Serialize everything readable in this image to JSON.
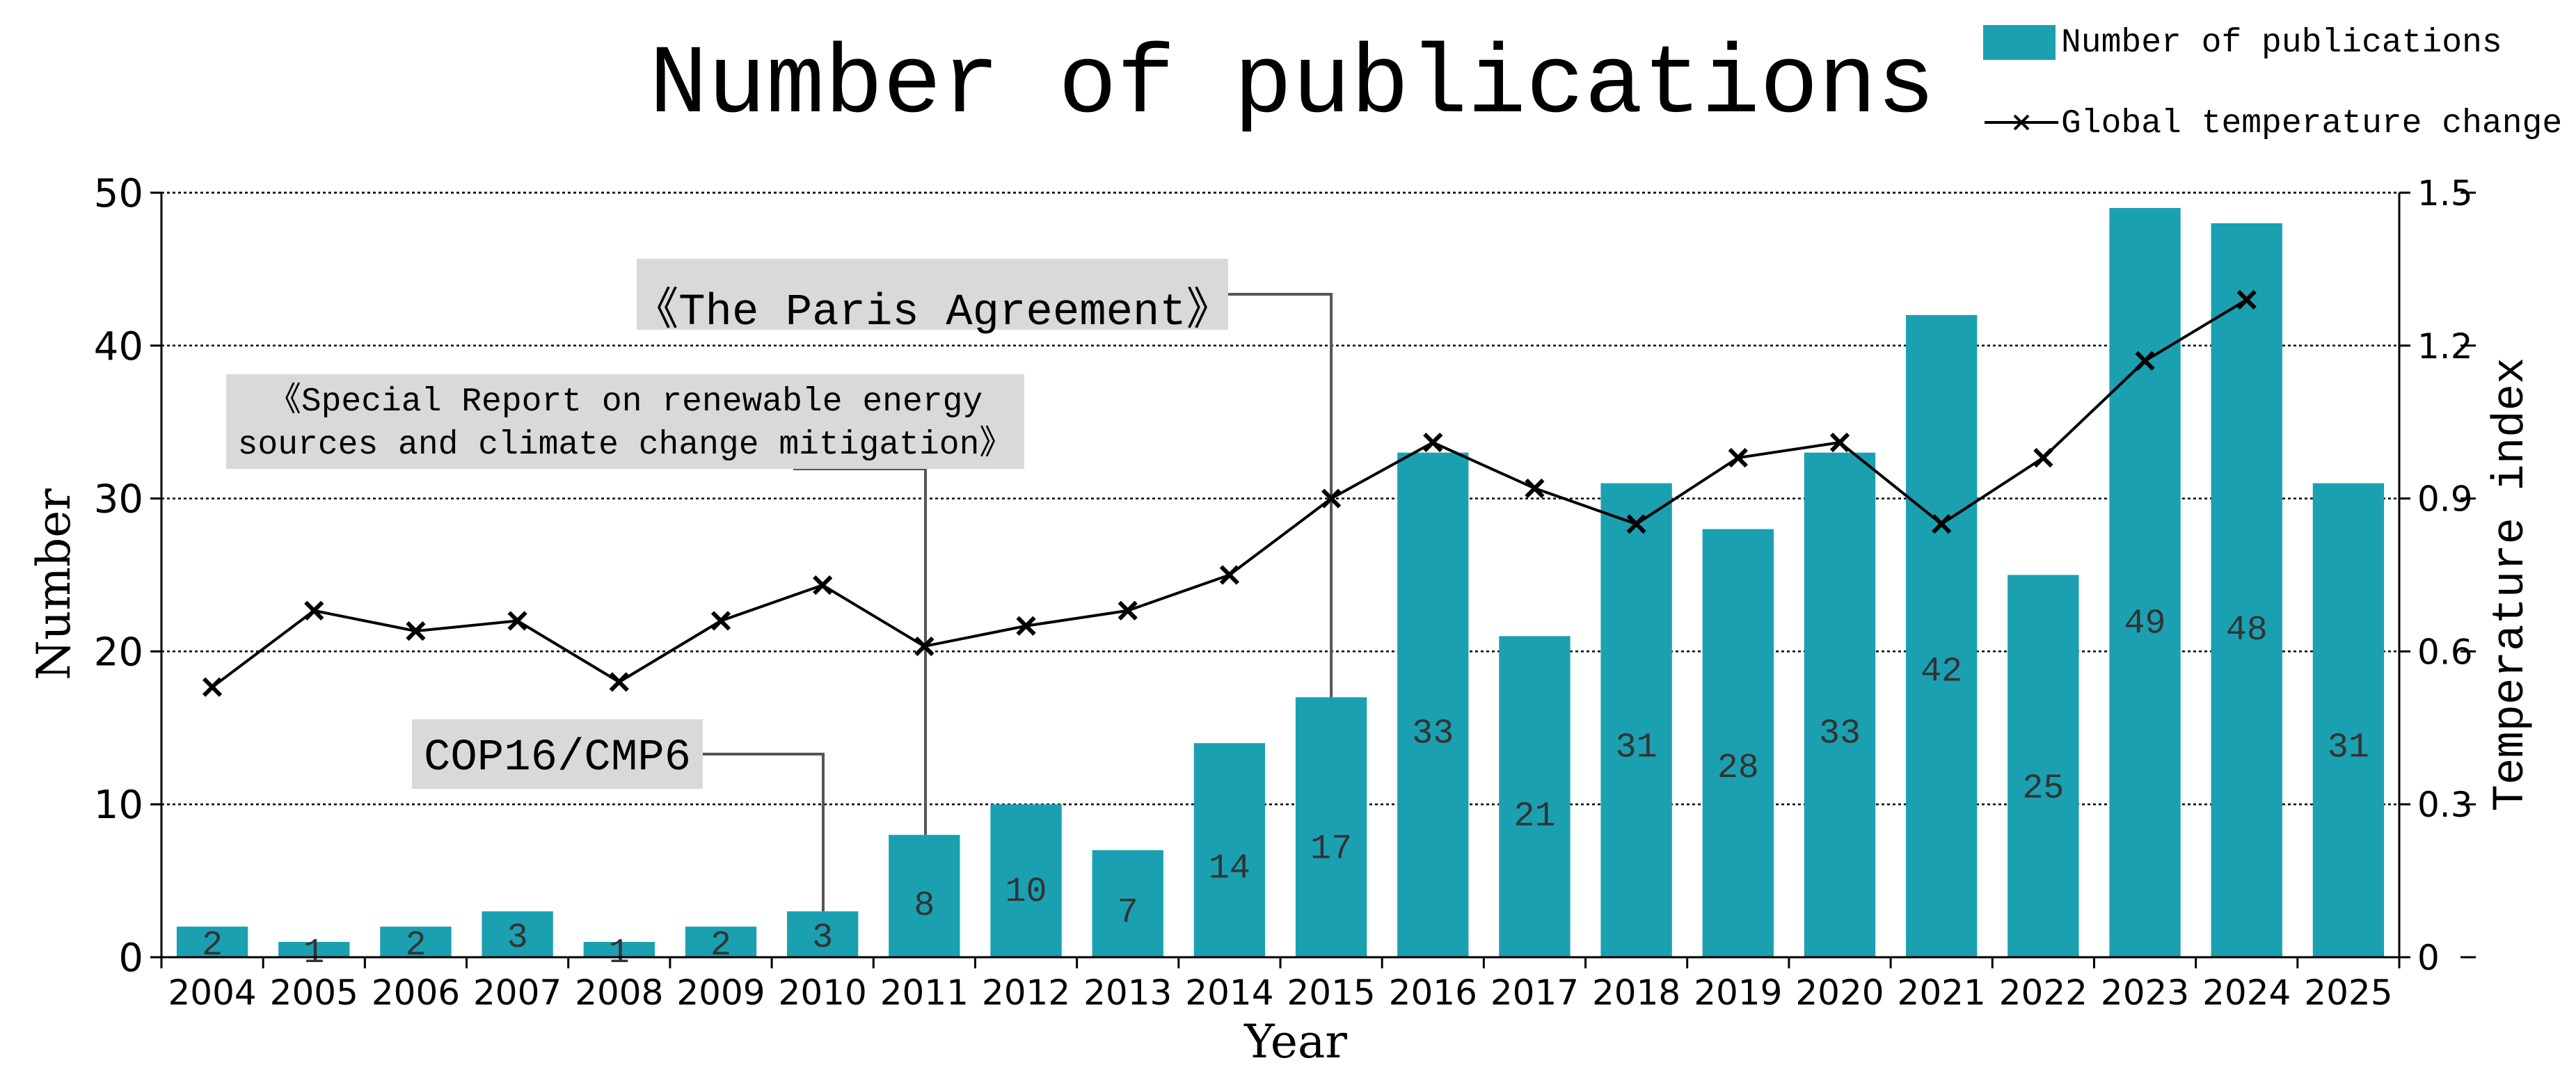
{
  "chart_data": {
    "type": "bar",
    "title": "Number of publications",
    "xlabel": "Year",
    "ylabel": "Number",
    "y2label": "Temperature index",
    "ylim": [
      0,
      50
    ],
    "y2lim": [
      0,
      1.5
    ],
    "yticks": [
      "0",
      "10",
      "20",
      "30",
      "40",
      "50"
    ],
    "y2ticks": [
      "0",
      "0.3",
      "0.6",
      "0.9",
      "1.2",
      "1.5"
    ],
    "grid": true,
    "legend_position": "top-right",
    "categories": [
      "2004",
      "2005",
      "2006",
      "2007",
      "2008",
      "2009",
      "2010",
      "2011",
      "2012",
      "2013",
      "2014",
      "2015",
      "2016",
      "2017",
      "2018",
      "2019",
      "2020",
      "2021",
      "2022",
      "2023",
      "2024",
      "2025"
    ],
    "series": [
      {
        "name": "Number of publications",
        "type": "bar",
        "axis": "left",
        "color": "#1aa0b1",
        "values": [
          2,
          1,
          2,
          3,
          1,
          2,
          3,
          8,
          10,
          7,
          14,
          17,
          33,
          21,
          31,
          28,
          33,
          42,
          25,
          49,
          48,
          31
        ],
        "labels": [
          "2",
          "1",
          "2",
          "3",
          "1",
          "2",
          "3",
          "8",
          "10",
          "7",
          "14",
          "17",
          "33",
          "21",
          "31",
          "28",
          "33",
          "42",
          "25",
          "49",
          "48",
          "31"
        ]
      },
      {
        "name": "Global temperature change",
        "type": "line",
        "axis": "right",
        "color": "#000000",
        "marker": "x",
        "values": [
          0.53,
          0.68,
          0.64,
          0.66,
          0.54,
          0.66,
          0.73,
          0.61,
          0.65,
          0.68,
          0.75,
          0.9,
          1.01,
          0.92,
          0.85,
          0.98,
          1.01,
          0.85,
          0.98,
          1.17,
          1.29,
          null
        ]
      }
    ],
    "annotations": [
      {
        "lines": [
          "《The Paris Agreement》"
        ],
        "year": "2015"
      },
      {
        "lines": [
          "《Special Report on renewable energy",
          "sources and climate change mitigation》"
        ],
        "year": "2011"
      },
      {
        "lines": [
          "COP16/CMP6"
        ],
        "year": "2010"
      }
    ]
  },
  "colors": {
    "bar": "#1aa0b1",
    "line": "#000000",
    "annotation_box": "#d9d9d9",
    "connector": "#555555",
    "grid": "#000000"
  }
}
